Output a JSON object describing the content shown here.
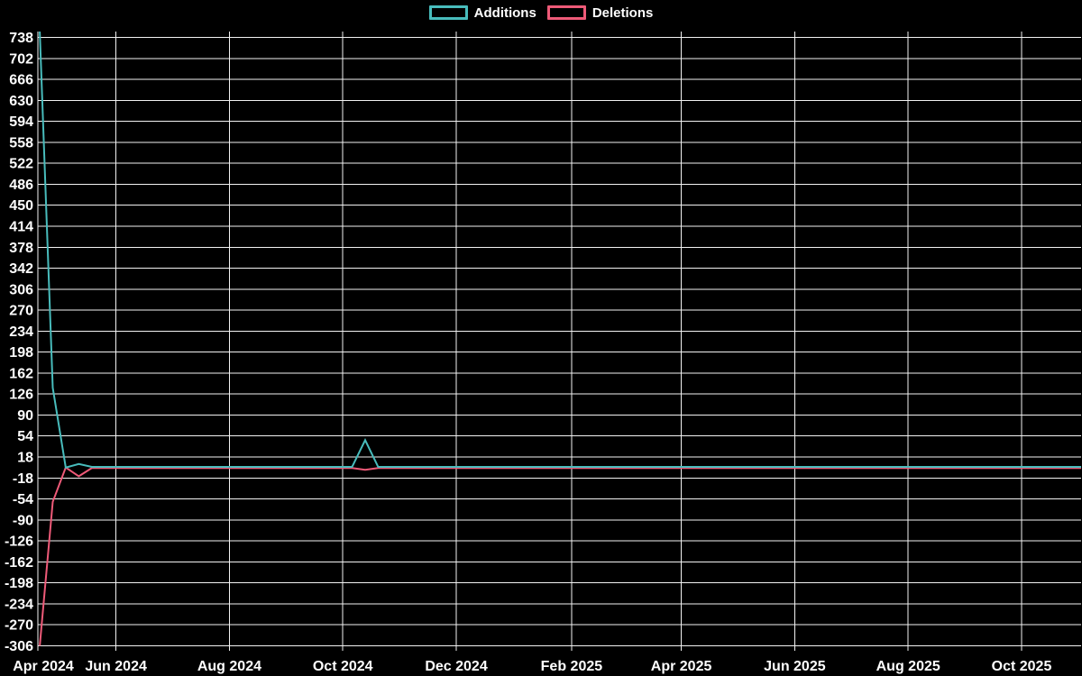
{
  "chart_data": {
    "type": "line",
    "title": "",
    "legend_position": "top-center",
    "grid": true,
    "background_color": "#000000",
    "gridline_color": "#f2f2f2",
    "text_color": "#ffffff",
    "x_axis": {
      "type": "time",
      "start_date": "2024-04-20",
      "end_date": "2025-11-02",
      "tick_dates": [
        "2024-04-20",
        "2024-06-01",
        "2024-08-01",
        "2024-10-01",
        "2024-12-01",
        "2025-02-01",
        "2025-04-01",
        "2025-06-01",
        "2025-08-01",
        "2025-10-01"
      ],
      "tick_labels": [
        "Apr 2024",
        "Jun 2024",
        "Aug 2024",
        "Oct 2024",
        "Dec 2024",
        "Feb 2025",
        "Apr 2025",
        "Jun 2025",
        "Aug 2025",
        "Oct 2025"
      ]
    },
    "y_axis": {
      "min": -306,
      "max": 738,
      "tick_step": 36,
      "tick_labels": [
        "738",
        "702",
        "666",
        "630",
        "594",
        "558",
        "522",
        "486",
        "450",
        "414",
        "378",
        "342",
        "306",
        "270",
        "234",
        "198",
        "162",
        "126",
        "90",
        "54",
        "18",
        "-18",
        "-54",
        "-90",
        "-126",
        "-162",
        "-198",
        "-234",
        "-270",
        "-306"
      ]
    },
    "series": [
      {
        "name": "Additions",
        "color": "#48bcbc",
        "points": [
          [
            "2024-04-21",
            748
          ],
          [
            "2024-04-28",
            137
          ],
          [
            "2024-05-05",
            0
          ],
          [
            "2024-05-12",
            6
          ],
          [
            "2024-05-19",
            1
          ],
          [
            "2024-10-06",
            1
          ],
          [
            "2024-10-13",
            47
          ],
          [
            "2024-10-20",
            1
          ],
          [
            "2025-11-02",
            1
          ]
        ]
      },
      {
        "name": "Deletions",
        "color": "#ee5a78",
        "points": [
          [
            "2024-04-21",
            -306
          ],
          [
            "2024-04-28",
            -59
          ],
          [
            "2024-05-05",
            0
          ],
          [
            "2024-05-12",
            -15
          ],
          [
            "2024-05-19",
            -1
          ],
          [
            "2024-10-06",
            -1
          ],
          [
            "2024-10-13",
            -4
          ],
          [
            "2024-10-20",
            -1
          ],
          [
            "2025-11-02",
            -1
          ]
        ]
      }
    ]
  }
}
